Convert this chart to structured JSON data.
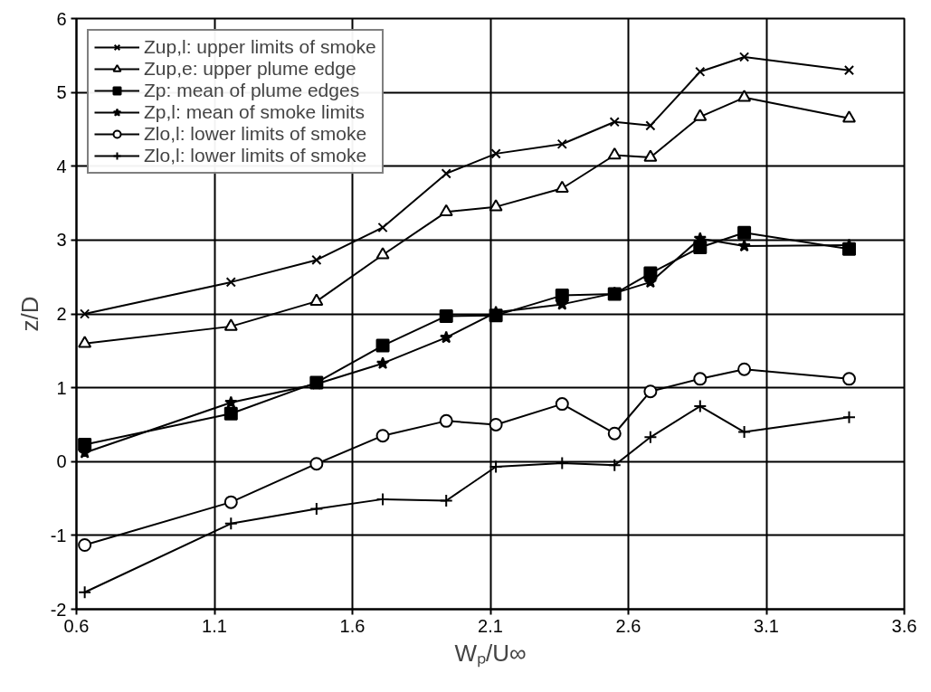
{
  "chart_data": {
    "type": "line",
    "xlabel": "Wₚ/U∞",
    "ylabel": "z/D",
    "x": [
      0.63,
      1.16,
      1.47,
      1.71,
      1.94,
      2.12,
      2.36,
      2.55,
      2.68,
      2.86,
      3.02,
      3.4
    ],
    "series": [
      {
        "name": "Zup,l: upper limits of smoke",
        "color": "#000000",
        "marker": "x",
        "values": [
          2.0,
          2.43,
          2.73,
          3.17,
          3.9,
          4.17,
          4.3,
          4.6,
          4.55,
          5.28,
          5.48,
          5.3
        ]
      },
      {
        "name": "Zup,e: upper plume edge",
        "color": "#000000",
        "marker": "triangle",
        "values": [
          1.6,
          1.83,
          2.17,
          2.8,
          3.38,
          3.45,
          3.7,
          4.15,
          4.12,
          4.67,
          4.93,
          4.65
        ]
      },
      {
        "name": "Zp: mean of plume edges",
        "color": "#000000",
        "marker": "square",
        "values": [
          0.23,
          0.65,
          1.07,
          1.57,
          1.97,
          1.98,
          2.25,
          2.27,
          2.55,
          2.9,
          3.1,
          2.88
        ]
      },
      {
        "name": "Zp,l: mean of smoke limits",
        "color": "#000000",
        "marker": "star",
        "values": [
          0.12,
          0.8,
          1.05,
          1.33,
          1.68,
          2.02,
          2.13,
          2.28,
          2.43,
          3.02,
          2.92,
          2.93
        ]
      },
      {
        "name": "Zlo,l: lower limits of smoke",
        "color": "#000000",
        "marker": "circle",
        "values": [
          -1.13,
          -0.55,
          -0.03,
          0.35,
          0.55,
          0.5,
          0.78,
          0.38,
          0.95,
          1.12,
          1.25,
          1.12
        ]
      },
      {
        "name": "Zlo,l: lower limits of smoke",
        "color": "#000000",
        "marker": "cross",
        "values": [
          -1.77,
          -0.84,
          -0.64,
          -0.51,
          -0.53,
          -0.07,
          -0.02,
          -0.05,
          0.33,
          0.75,
          0.4,
          0.6
        ]
      }
    ],
    "xlim": [
      0.6,
      3.6
    ],
    "xticks": [
      0.6,
      1.1,
      1.6,
      2.1,
      2.6,
      3.1,
      3.6
    ],
    "ylim": [
      -2,
      6
    ],
    "yticks": [
      -2,
      -1,
      0,
      1,
      2,
      3,
      4,
      5,
      6
    ],
    "grid": true,
    "legend": "top left",
    "line_style": "solid"
  }
}
